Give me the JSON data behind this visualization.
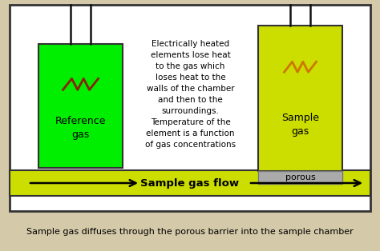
{
  "bg_color": "#d4c9a8",
  "main_box_color": "#ffffff",
  "main_box_border": "#333333",
  "ref_chamber_color": "#00ee00",
  "sample_chamber_color": "#ccdd00",
  "flow_bar_color": "#ccdd00",
  "porous_color": "#aaaaaa",
  "wire_color": "#111111",
  "resistor_color_ref": "#882200",
  "resistor_color_sample": "#cc7700",
  "text_center": "Electrically heated\nelements lose heat\nto the gas which\nloses heat to the\nwalls of the chamber\nand then to the\nsurroundings.\nTemperature of the\nelement is a function\nof gas concentrations",
  "text_ref": "Reference\ngas",
  "text_sample": "Sample\ngas",
  "text_porous": "porous",
  "text_flow": "Sample gas flow",
  "text_bottom": "Sample gas diffuses through the porous barrier into the sample chamber",
  "figsize": [
    4.74,
    3.14
  ],
  "dpi": 100
}
